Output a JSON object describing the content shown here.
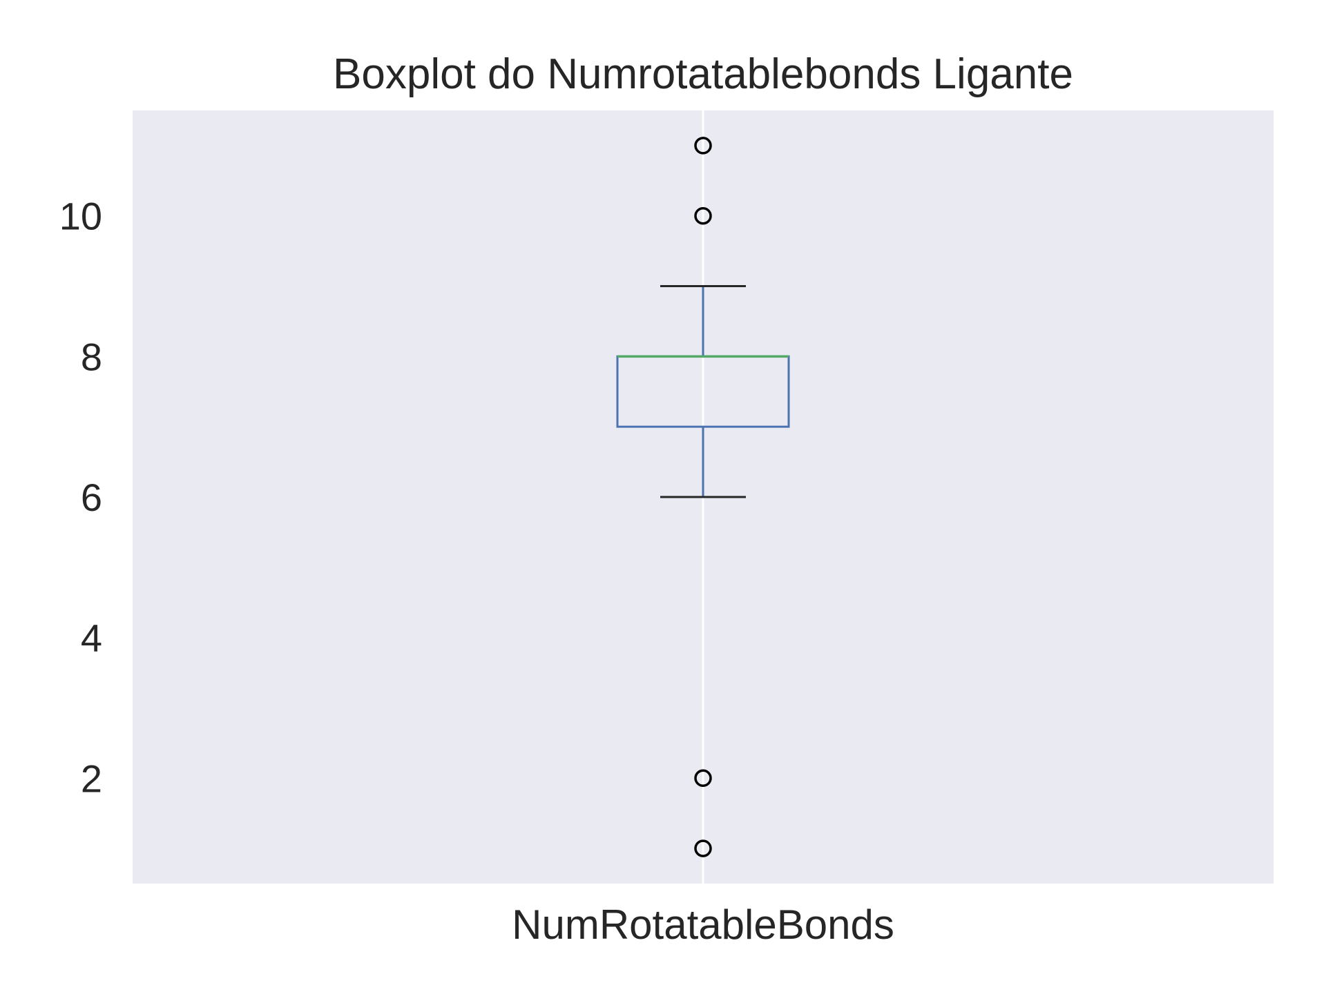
{
  "chart_data": {
    "type": "box",
    "title": "Boxplot do Numrotatablebonds Ligante",
    "categories": [
      "NumRotatableBonds"
    ],
    "boxes": [
      {
        "category": "NumRotatableBonds",
        "whisker_low": 6,
        "q1": 7,
        "median": 8,
        "q3": 8,
        "whisker_high": 9,
        "outliers": [
          11,
          10,
          2,
          1
        ]
      }
    ],
    "ylim": [
      0.5,
      11.5
    ],
    "yticks": [
      2,
      4,
      6,
      8,
      10
    ],
    "xlabel": "",
    "ylabel": "",
    "grid": true,
    "colors": {
      "plot_background": "#EAEAF2",
      "grid": "#FFFFFF",
      "box": "#4C72B0",
      "median": "#55A868",
      "caps": "#262626",
      "outlier_edge": "#000000"
    }
  }
}
